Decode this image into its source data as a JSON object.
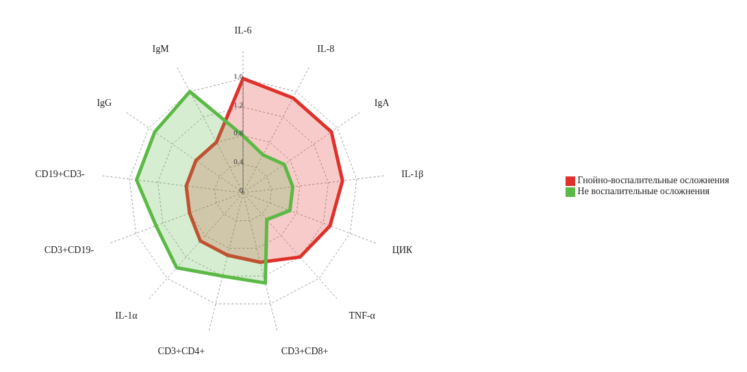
{
  "chart_data": {
    "type": "radar",
    "categories": [
      "IL-6",
      "IL-8",
      "IgA",
      "IL-1β",
      "ЦИК",
      "TNF-α",
      "CD3+CD8+",
      "CD3+CD4+",
      "IL-1α",
      "CD3+CD19-",
      "CD19+CD3-",
      "IgG",
      "IgM"
    ],
    "series": [
      {
        "name": "Гнойно-воспалительные осложнения",
        "color": "#e0302a",
        "values": [
          1.6,
          1.5,
          1.5,
          1.4,
          1.3,
          1.2,
          1.0,
          0.9,
          0.9,
          0.8,
          0.8,
          0.8,
          0.8
        ]
      },
      {
        "name": "Не воспалительные осложнения",
        "color": "#5cb946",
        "values": [
          0.8,
          0.6,
          0.7,
          0.7,
          0.7,
          0.5,
          1.3,
          1.2,
          1.4,
          1.3,
          1.5,
          1.5,
          1.6
        ]
      }
    ],
    "ylim": [
      0,
      1.6
    ],
    "yticks": [
      0,
      0.4,
      0.8,
      1.2,
      1.6
    ],
    "grid": true,
    "legend": "right"
  }
}
